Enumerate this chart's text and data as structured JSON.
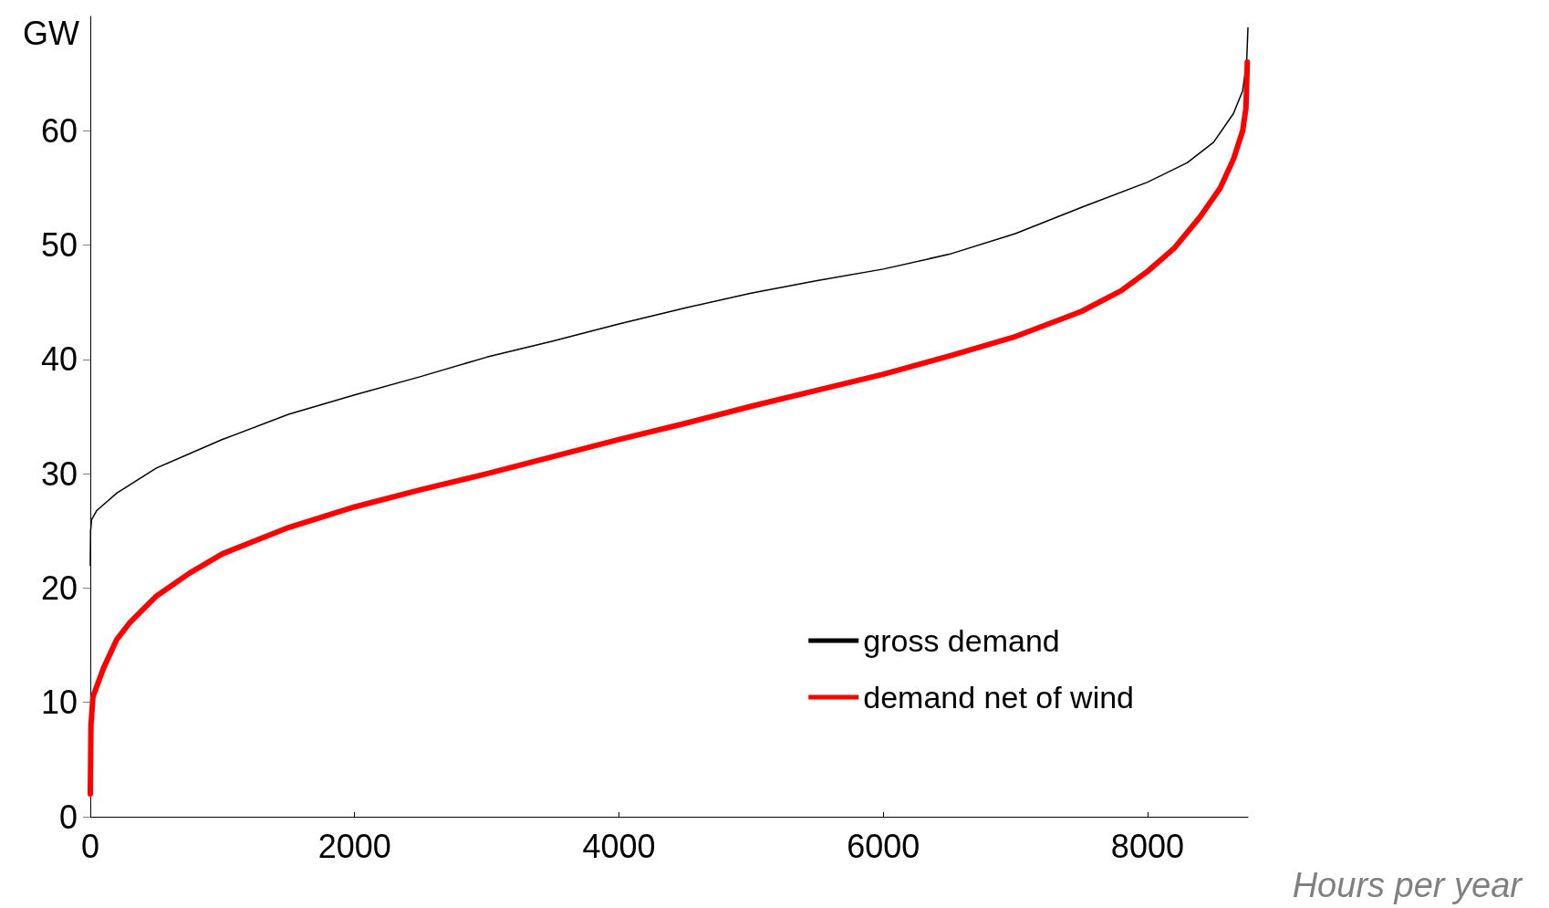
{
  "chart_data": {
    "type": "line",
    "ylabel": "GW",
    "xlabel": "Hours per year",
    "xlim": [
      0,
      8760
    ],
    "xticks": [
      0,
      2000,
      4000,
      6000,
      8000
    ],
    "ylim": [
      0,
      70
    ],
    "yticks": [
      0,
      10,
      20,
      30,
      40,
      50,
      60
    ],
    "grid": false,
    "legend": "bottom right",
    "marker": "none",
    "line_style": "solid",
    "series": [
      {
        "name": "gross demand",
        "color": "#000000",
        "x": [
          0,
          2,
          10,
          50,
          100,
          200,
          500,
          1000,
          1500,
          2000,
          2500,
          3000,
          3500,
          4000,
          4500,
          5000,
          5500,
          6000,
          6500,
          7000,
          7500,
          8000,
          8300,
          8500,
          8650,
          8720,
          8750,
          8760
        ],
        "values": [
          22,
          25,
          26,
          26.8,
          27.3,
          28.3,
          30.5,
          33,
          35.2,
          36.9,
          38.5,
          40.2,
          41.6,
          43.1,
          44.5,
          45.8,
          46.9,
          47.9,
          49.2,
          51,
          53.3,
          55.5,
          57.2,
          59,
          61.5,
          63.5,
          66,
          69
        ]
      },
      {
        "name": "demand net of wind",
        "color": "#ff0000",
        "x": [
          0,
          5,
          20,
          100,
          200,
          300,
          500,
          750,
          1000,
          1500,
          2000,
          2500,
          3000,
          3500,
          4000,
          4500,
          5000,
          5500,
          6000,
          6500,
          7000,
          7500,
          7800,
          8000,
          8200,
          8400,
          8550,
          8650,
          8720,
          8745,
          8755
        ],
        "values": [
          2,
          8,
          10.5,
          13,
          15.5,
          17,
          19.3,
          21.3,
          23,
          25.3,
          27.1,
          28.6,
          30,
          31.5,
          33,
          34.4,
          35.9,
          37.3,
          38.7,
          40.3,
          42,
          44.2,
          46,
          47.7,
          49.7,
          52.5,
          55,
          57.5,
          60,
          62,
          66
        ]
      }
    ]
  }
}
